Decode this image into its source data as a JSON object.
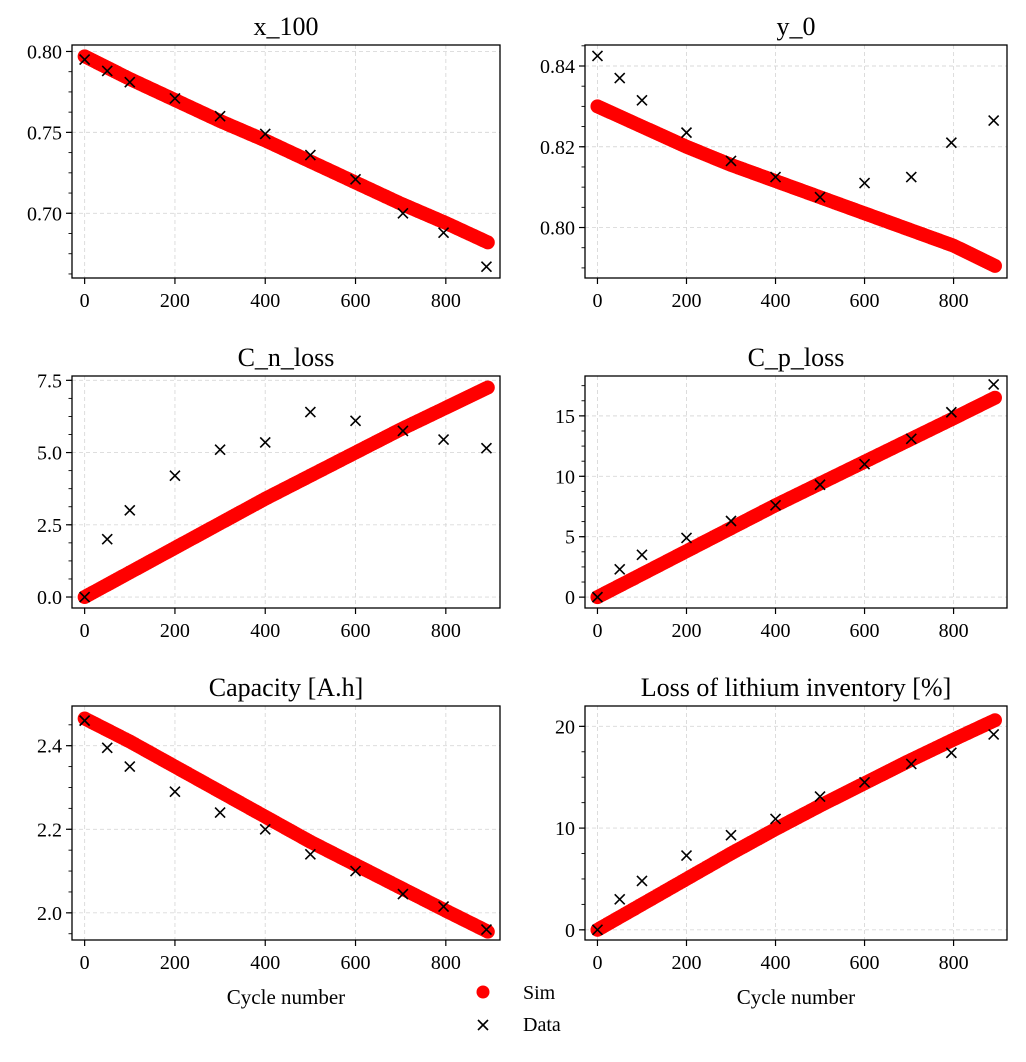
{
  "chart_data": [
    {
      "type": "scatter",
      "title": "x_100",
      "xlabel": "",
      "xlim": [
        -28,
        920
      ],
      "ylim": [
        0.66,
        0.804
      ],
      "xticks": [
        0,
        200,
        400,
        600,
        800
      ],
      "yticks": [
        0.7,
        0.75,
        0.8
      ],
      "ytick_labels": [
        "0.70",
        "0.75",
        "0.80"
      ],
      "grid": true,
      "series": [
        {
          "name": "Sim",
          "x": [
            0,
            100,
            200,
            300,
            400,
            500,
            600,
            700,
            800,
            893
          ],
          "y": [
            0.797,
            0.783,
            0.77,
            0.757,
            0.745,
            0.732,
            0.719,
            0.706,
            0.694,
            0.682
          ]
        },
        {
          "name": "Data",
          "x": [
            0,
            50,
            100,
            200,
            300,
            400,
            500,
            600,
            705,
            795,
            890
          ],
          "y": [
            0.795,
            0.788,
            0.781,
            0.771,
            0.76,
            0.749,
            0.736,
            0.721,
            0.7,
            0.688,
            0.667
          ]
        }
      ]
    },
    {
      "type": "scatter",
      "title": "y_0",
      "xlabel": "",
      "xlim": [
        -28,
        920
      ],
      "ylim": [
        0.7875,
        0.8452
      ],
      "xticks": [
        0,
        200,
        400,
        600,
        800
      ],
      "yticks": [
        0.8,
        0.82,
        0.84
      ],
      "ytick_labels": [
        "0.80",
        "0.82",
        "0.84"
      ],
      "grid": true,
      "series": [
        {
          "name": "Sim",
          "x": [
            0,
            100,
            200,
            300,
            400,
            500,
            600,
            700,
            800,
            893
          ],
          "y": [
            0.83,
            0.825,
            0.82,
            0.8155,
            0.8115,
            0.8075,
            0.8035,
            0.7995,
            0.7955,
            0.7905
          ]
        },
        {
          "name": "Data",
          "x": [
            0,
            50,
            100,
            200,
            300,
            400,
            500,
            600,
            705,
            795,
            890
          ],
          "y": [
            0.8425,
            0.837,
            0.8315,
            0.8235,
            0.8165,
            0.8125,
            0.8075,
            0.811,
            0.8125,
            0.821,
            0.8265
          ]
        }
      ]
    },
    {
      "type": "scatter",
      "title": "C_n_loss",
      "xlabel": "",
      "xlim": [
        -28,
        920
      ],
      "ylim": [
        -0.38,
        7.65
      ],
      "xticks": [
        0,
        200,
        400,
        600,
        800
      ],
      "yticks": [
        0.0,
        2.5,
        5.0,
        7.5
      ],
      "ytick_labels": [
        "0.0",
        "2.5",
        "5.0",
        "7.5"
      ],
      "grid": true,
      "series": [
        {
          "name": "Sim",
          "x": [
            0,
            100,
            200,
            300,
            400,
            500,
            600,
            700,
            800,
            893
          ],
          "y": [
            0.0,
            0.85,
            1.7,
            2.55,
            3.4,
            4.2,
            5.0,
            5.8,
            6.55,
            7.25
          ]
        },
        {
          "name": "Data",
          "x": [
            0,
            50,
            100,
            200,
            300,
            400,
            500,
            600,
            705,
            795,
            890
          ],
          "y": [
            0.0,
            2.0,
            3.0,
            4.2,
            5.1,
            5.35,
            6.4,
            6.1,
            5.75,
            5.45,
            5.15
          ]
        }
      ]
    },
    {
      "type": "scatter",
      "title": "C_p_loss",
      "xlabel": "",
      "xlim": [
        -28,
        920
      ],
      "ylim": [
        -0.9,
        18.3
      ],
      "xticks": [
        0,
        200,
        400,
        600,
        800
      ],
      "yticks": [
        0,
        5,
        10,
        15
      ],
      "ytick_labels": [
        "0",
        "5",
        "10",
        "15"
      ],
      "grid": true,
      "series": [
        {
          "name": "Sim",
          "x": [
            0,
            100,
            200,
            300,
            400,
            500,
            600,
            700,
            800,
            893
          ],
          "y": [
            0.0,
            1.9,
            3.8,
            5.7,
            7.6,
            9.4,
            11.2,
            13.0,
            14.8,
            16.5
          ]
        },
        {
          "name": "Data",
          "x": [
            0,
            50,
            100,
            200,
            300,
            400,
            500,
            600,
            705,
            795,
            890
          ],
          "y": [
            0.0,
            2.3,
            3.5,
            4.9,
            6.3,
            7.6,
            9.3,
            11.0,
            13.1,
            15.3,
            17.6
          ]
        }
      ]
    },
    {
      "type": "scatter",
      "title": "Capacity [A.h]",
      "xlabel": "Cycle number",
      "xlim": [
        -28,
        920
      ],
      "ylim": [
        1.935,
        2.495
      ],
      "xticks": [
        0,
        200,
        400,
        600,
        800
      ],
      "yticks": [
        2.0,
        2.2,
        2.4
      ],
      "ytick_labels": [
        "2.0",
        "2.2",
        "2.4"
      ],
      "grid": true,
      "series": [
        {
          "name": "Sim",
          "x": [
            0,
            100,
            200,
            300,
            400,
            500,
            600,
            700,
            800,
            893
          ],
          "y": [
            2.465,
            2.41,
            2.35,
            2.29,
            2.23,
            2.17,
            2.115,
            2.06,
            2.005,
            1.955
          ]
        },
        {
          "name": "Data",
          "x": [
            0,
            50,
            100,
            200,
            300,
            400,
            500,
            600,
            705,
            795,
            890
          ],
          "y": [
            2.46,
            2.395,
            2.35,
            2.29,
            2.24,
            2.2,
            2.14,
            2.1,
            2.045,
            2.015,
            1.96
          ]
        }
      ]
    },
    {
      "type": "scatter",
      "title": "Loss of lithium inventory [%]",
      "xlabel": "Cycle number",
      "xlim": [
        -28,
        920
      ],
      "ylim": [
        -1.0,
        22.0
      ],
      "xticks": [
        0,
        200,
        400,
        600,
        800
      ],
      "yticks": [
        0,
        10,
        20
      ],
      "ytick_labels": [
        "0",
        "10",
        "20"
      ],
      "grid": true,
      "series": [
        {
          "name": "Sim",
          "x": [
            0,
            100,
            200,
            300,
            400,
            500,
            600,
            700,
            800,
            893
          ],
          "y": [
            0.0,
            2.5,
            5.0,
            7.5,
            9.9,
            12.2,
            14.4,
            16.6,
            18.7,
            20.6
          ]
        },
        {
          "name": "Data",
          "x": [
            0,
            50,
            100,
            200,
            300,
            400,
            500,
            600,
            705,
            795,
            890
          ],
          "y": [
            0.0,
            3.0,
            4.8,
            7.3,
            9.3,
            10.9,
            13.1,
            14.5,
            16.3,
            17.4,
            19.2
          ]
        }
      ]
    }
  ],
  "legend": {
    "placement": "bottom-center",
    "items": [
      {
        "label": "Sim",
        "marker": "circle",
        "color": "#ff0000"
      },
      {
        "label": "Data",
        "marker": "x",
        "color": "#000000"
      }
    ]
  },
  "colors": {
    "sim": "#ff0000",
    "data": "#000000",
    "grid": "#d9d9d9"
  }
}
